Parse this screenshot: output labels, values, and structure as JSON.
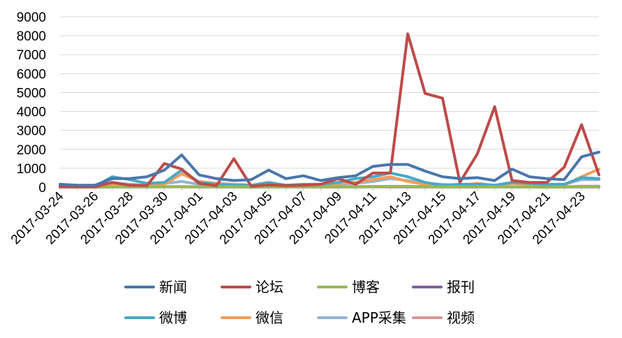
{
  "chart_data": {
    "type": "line",
    "x": [
      "2017-03-24",
      "2017-03-25",
      "2017-03-26",
      "2017-03-27",
      "2017-03-28",
      "2017-03-29",
      "2017-03-30",
      "2017-03-31",
      "2017-04-01",
      "2017-04-02",
      "2017-04-03",
      "2017-04-04",
      "2017-04-05",
      "2017-04-06",
      "2017-04-07",
      "2017-04-08",
      "2017-04-09",
      "2017-04-10",
      "2017-04-11",
      "2017-04-12",
      "2017-04-13",
      "2017-04-14",
      "2017-04-15",
      "2017-04-16",
      "2017-04-17",
      "2017-04-18",
      "2017-04-19",
      "2017-04-20",
      "2017-04-21",
      "2017-04-22",
      "2017-04-23",
      "2017-04-24"
    ],
    "x_tick_labels": [
      "2017-03-24",
      "2017-03-26",
      "2017-03-28",
      "2017-03-30",
      "2017-04-01",
      "2017-04-03",
      "2017-04-05",
      "2017-04-07",
      "2017-04-09",
      "2017-04-11",
      "2017-04-13",
      "2017-04-15",
      "2017-04-17",
      "2017-04-19",
      "2017-04-21",
      "2017-04-23"
    ],
    "ylim": [
      0,
      9000
    ],
    "y_ticks": [
      0,
      1000,
      2000,
      3000,
      4000,
      5000,
      6000,
      7000,
      8000,
      9000
    ],
    "grid": "horizontal",
    "legend_position": "bottom",
    "series": [
      {
        "name": "新闻",
        "color": "#4a76ab",
        "values": [
          150,
          100,
          100,
          450,
          450,
          550,
          900,
          1700,
          650,
          450,
          350,
          400,
          900,
          450,
          600,
          350,
          500,
          600,
          1100,
          1200,
          1200,
          850,
          550,
          450,
          500,
          350,
          950,
          550,
          450,
          400,
          1600,
          1850
        ]
      },
      {
        "name": "论坛",
        "color": "#be4b48",
        "values": [
          30,
          20,
          20,
          250,
          100,
          80,
          1250,
          950,
          200,
          80,
          1500,
          50,
          120,
          80,
          100,
          150,
          450,
          150,
          750,
          750,
          8100,
          4950,
          4700,
          250,
          1750,
          4250,
          350,
          250,
          250,
          1050,
          3300,
          650
        ]
      },
      {
        "name": "博客",
        "color": "#98b954",
        "values": [
          10,
          10,
          10,
          20,
          20,
          20,
          30,
          30,
          20,
          20,
          20,
          10,
          20,
          20,
          20,
          20,
          20,
          30,
          30,
          40,
          40,
          30,
          20,
          20,
          20,
          20,
          20,
          20,
          10,
          20,
          40,
          30
        ]
      },
      {
        "name": "报刊",
        "color": "#7d60a0",
        "values": [
          5,
          5,
          5,
          10,
          10,
          10,
          20,
          20,
          10,
          10,
          10,
          5,
          10,
          10,
          10,
          10,
          10,
          15,
          20,
          20,
          20,
          15,
          10,
          10,
          10,
          10,
          10,
          10,
          5,
          10,
          20,
          15
        ]
      },
      {
        "name": "微博",
        "color": "#46aac5",
        "values": [
          50,
          40,
          40,
          550,
          400,
          200,
          250,
          900,
          250,
          150,
          100,
          100,
          250,
          100,
          150,
          150,
          250,
          450,
          550,
          750,
          550,
          250,
          100,
          150,
          150,
          100,
          250,
          200,
          150,
          150,
          500,
          450
        ]
      },
      {
        "name": "微信",
        "color": "#f59d56",
        "values": [
          30,
          30,
          30,
          150,
          100,
          100,
          150,
          700,
          300,
          200,
          150,
          100,
          200,
          100,
          100,
          100,
          200,
          250,
          400,
          550,
          300,
          150,
          100,
          100,
          200,
          100,
          200,
          150,
          100,
          100,
          550,
          950
        ]
      },
      {
        "name": "APP采集",
        "color": "#95b3d7",
        "values": [
          20,
          20,
          20,
          250,
          150,
          100,
          200,
          300,
          150,
          100,
          150,
          100,
          150,
          100,
          100,
          100,
          150,
          200,
          300,
          450,
          350,
          200,
          150,
          100,
          150,
          100,
          250,
          200,
          150,
          150,
          400,
          400
        ]
      },
      {
        "name": "视频",
        "color": "#d99694",
        "values": [
          10,
          10,
          10,
          20,
          20,
          20,
          30,
          30,
          20,
          20,
          20,
          10,
          20,
          20,
          20,
          20,
          20,
          30,
          40,
          40,
          40,
          30,
          20,
          20,
          20,
          20,
          30,
          20,
          20,
          20,
          50,
          50
        ]
      }
    ]
  }
}
